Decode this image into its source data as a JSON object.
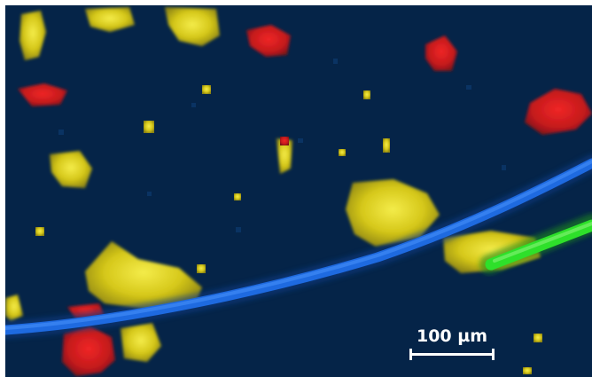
{
  "image": {
    "background_color": "#052448",
    "channel_colors": {
      "yellow": "#d6c81a",
      "red": "#d81a1c",
      "blue": "#1e6ae0",
      "green": "#2ee02a"
    }
  },
  "scale_bar": {
    "label": "100 µm"
  }
}
